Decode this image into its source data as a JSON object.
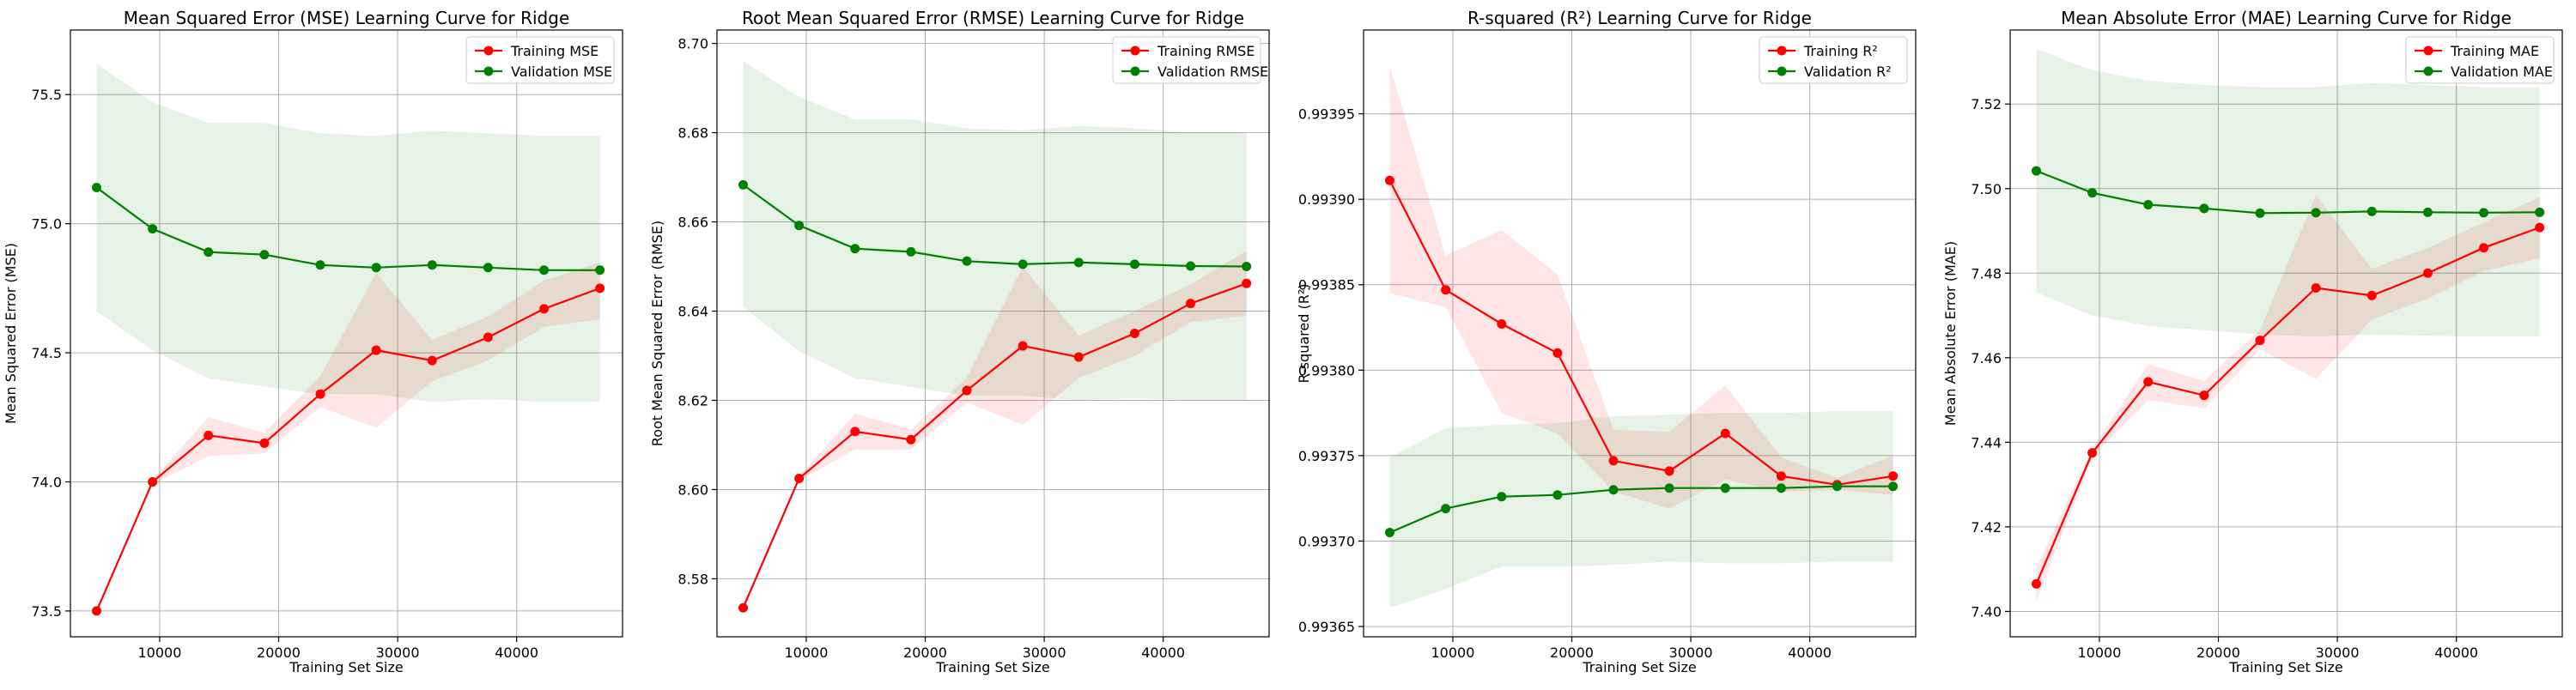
{
  "figure": {
    "x_tick_labels": [
      "10000",
      "20000",
      "30000",
      "40000"
    ],
    "x_ticks": [
      10000,
      20000,
      30000,
      40000
    ],
    "x_range": [
      2500,
      48900
    ],
    "train_sizes": [
      4700,
      9400,
      14100,
      18800,
      23500,
      28200,
      32900,
      37600,
      42300,
      47000
    ],
    "train_color": "#ff0000",
    "val_color": "#008000"
  },
  "chart_data": [
    {
      "type": "line",
      "title": "Mean Squared Error (MSE) Learning Curve for Ridge",
      "xlabel": "Training Set Size",
      "ylabel": "Mean Squared Error (MSE)",
      "ylim": [
        73.4,
        75.75
      ],
      "y_ticks": [
        73.5,
        74.0,
        74.5,
        75.0,
        75.5
      ],
      "y_tick_labels": [
        "73.5",
        "74.0",
        "74.5",
        "75.0",
        "75.5"
      ],
      "legend_position": "top-right",
      "grid": true,
      "series": [
        {
          "name": "Training MSE",
          "values": [
            73.5,
            74.0,
            74.18,
            74.15,
            74.34,
            74.51,
            74.47,
            74.56,
            74.67,
            74.75
          ],
          "lower": [
            73.5,
            73.99,
            74.1,
            74.11,
            74.29,
            74.21,
            74.39,
            74.47,
            74.6,
            74.63
          ],
          "upper": [
            73.5,
            74.01,
            74.25,
            74.19,
            74.41,
            74.81,
            74.55,
            74.64,
            74.78,
            74.85
          ]
        },
        {
          "name": "Validation MSE",
          "values": [
            75.14,
            74.98,
            74.89,
            74.88,
            74.84,
            74.83,
            74.84,
            74.83,
            74.82,
            74.82
          ],
          "lower": [
            74.66,
            74.51,
            74.4,
            74.37,
            74.34,
            74.34,
            74.31,
            74.32,
            74.31,
            74.31
          ],
          "upper": [
            75.62,
            75.47,
            75.39,
            75.39,
            75.35,
            75.34,
            75.36,
            75.35,
            75.34,
            75.34
          ]
        }
      ]
    },
    {
      "type": "line",
      "title": "Root Mean Squared Error (RMSE) Learning Curve for Ridge",
      "xlabel": "Training Set Size",
      "ylabel": "Root Mean Squared Error (RMSE)",
      "ylim": [
        8.567,
        8.703
      ],
      "y_ticks": [
        8.58,
        8.6,
        8.62,
        8.64,
        8.66,
        8.68,
        8.7
      ],
      "y_tick_labels": [
        "8.58",
        "8.60",
        "8.62",
        "8.64",
        "8.66",
        "8.68",
        "8.70"
      ],
      "legend_position": "top-right",
      "grid": true,
      "series": [
        {
          "name": "Training RMSE",
          "values": [
            8.5735,
            8.6025,
            8.613,
            8.6112,
            8.6222,
            8.6322,
            8.6297,
            8.635,
            8.6417,
            8.6462
          ],
          "lower": [
            8.5735,
            8.602,
            8.609,
            8.609,
            8.6195,
            8.6145,
            8.625,
            8.63,
            8.6375,
            8.639
          ],
          "upper": [
            8.5735,
            8.603,
            8.617,
            8.6135,
            8.625,
            8.65,
            8.6345,
            8.64,
            8.646,
            8.6535
          ]
        },
        {
          "name": "Validation RMSE",
          "values": [
            8.6683,
            8.6592,
            8.654,
            8.6533,
            8.6512,
            8.6505,
            8.6509,
            8.6505,
            8.6501,
            8.65
          ],
          "lower": [
            8.641,
            8.631,
            8.625,
            8.623,
            8.621,
            8.621,
            8.62,
            8.6205,
            8.62,
            8.62
          ],
          "upper": [
            8.696,
            8.688,
            8.683,
            8.683,
            8.681,
            8.6805,
            8.6815,
            8.681,
            8.68,
            8.68
          ]
        }
      ]
    },
    {
      "type": "line",
      "title": "R-squared (R²) Learning Curve for Ridge",
      "xlabel": "Training Set Size",
      "ylabel": "R-squared (R²)",
      "ylim": [
        0.993644,
        0.993999
      ],
      "y_ticks": [
        0.99365,
        0.9937,
        0.99375,
        0.9938,
        0.99385,
        0.9939,
        0.99395
      ],
      "y_tick_labels": [
        "0.99365",
        "0.99370",
        "0.99375",
        "0.99380",
        "0.99385",
        "0.99390",
        "0.99395"
      ],
      "legend_position": "top-right",
      "grid": true,
      "series": [
        {
          "name": "Training R²",
          "values": [
            0.993911,
            0.993847,
            0.993827,
            0.99381,
            0.993747,
            0.993741,
            0.993763,
            0.993738,
            0.993733,
            0.993738
          ],
          "lower": [
            0.993845,
            0.993837,
            0.993775,
            0.993763,
            0.993729,
            0.993719,
            0.993736,
            0.993729,
            0.99373,
            0.993727
          ],
          "upper": [
            0.993978,
            0.993867,
            0.993882,
            0.993856,
            0.993765,
            0.993764,
            0.993791,
            0.993749,
            0.993737,
            0.99375
          ]
        },
        {
          "name": "Validation R²",
          "values": [
            0.993705,
            0.993719,
            0.993726,
            0.993727,
            0.99373,
            0.993731,
            0.993731,
            0.993731,
            0.993732,
            0.993732
          ],
          "lower": [
            0.993661,
            0.993672,
            0.993685,
            0.993685,
            0.993686,
            0.993688,
            0.993687,
            0.993687,
            0.993688,
            0.993688
          ],
          "upper": [
            0.993749,
            0.993766,
            0.993768,
            0.993769,
            0.993773,
            0.993774,
            0.993775,
            0.993775,
            0.993776,
            0.993776
          ]
        }
      ]
    },
    {
      "type": "line",
      "title": "Mean Absolute Error (MAE) Learning Curve for Ridge",
      "xlabel": "Training Set Size",
      "ylabel": "Mean Absolute Error (MAE)",
      "ylim": [
        7.394,
        7.5375
      ],
      "y_ticks": [
        7.4,
        7.42,
        7.44,
        7.46,
        7.48,
        7.5,
        7.52
      ],
      "y_tick_labels": [
        "7.40",
        "7.42",
        "7.44",
        "7.46",
        "7.48",
        "7.50",
        "7.52"
      ],
      "legend_position": "top-right",
      "grid": true,
      "series": [
        {
          "name": "Training MAE",
          "values": [
            7.4065,
            7.4375,
            7.4543,
            7.4511,
            7.4641,
            7.4765,
            7.4747,
            7.48,
            7.486,
            7.4908
          ],
          "lower": [
            7.4025,
            7.4365,
            7.45,
            7.448,
            7.462,
            7.455,
            7.469,
            7.474,
            7.4805,
            7.4835
          ],
          "upper": [
            7.4105,
            7.4385,
            7.4585,
            7.4545,
            7.4665,
            7.4985,
            7.481,
            7.486,
            7.492,
            7.498
          ]
        },
        {
          "name": "Validation MAE",
          "values": [
            7.5042,
            7.499,
            7.4962,
            7.4953,
            7.4942,
            7.4943,
            7.4946,
            7.4944,
            7.4943,
            7.4944
          ],
          "lower": [
            7.4755,
            7.47,
            7.4675,
            7.4665,
            7.4655,
            7.465,
            7.4655,
            7.4652,
            7.465,
            7.465
          ],
          "upper": [
            7.533,
            7.528,
            7.5255,
            7.5245,
            7.524,
            7.524,
            7.525,
            7.5245,
            7.524,
            7.524
          ]
        }
      ]
    }
  ]
}
